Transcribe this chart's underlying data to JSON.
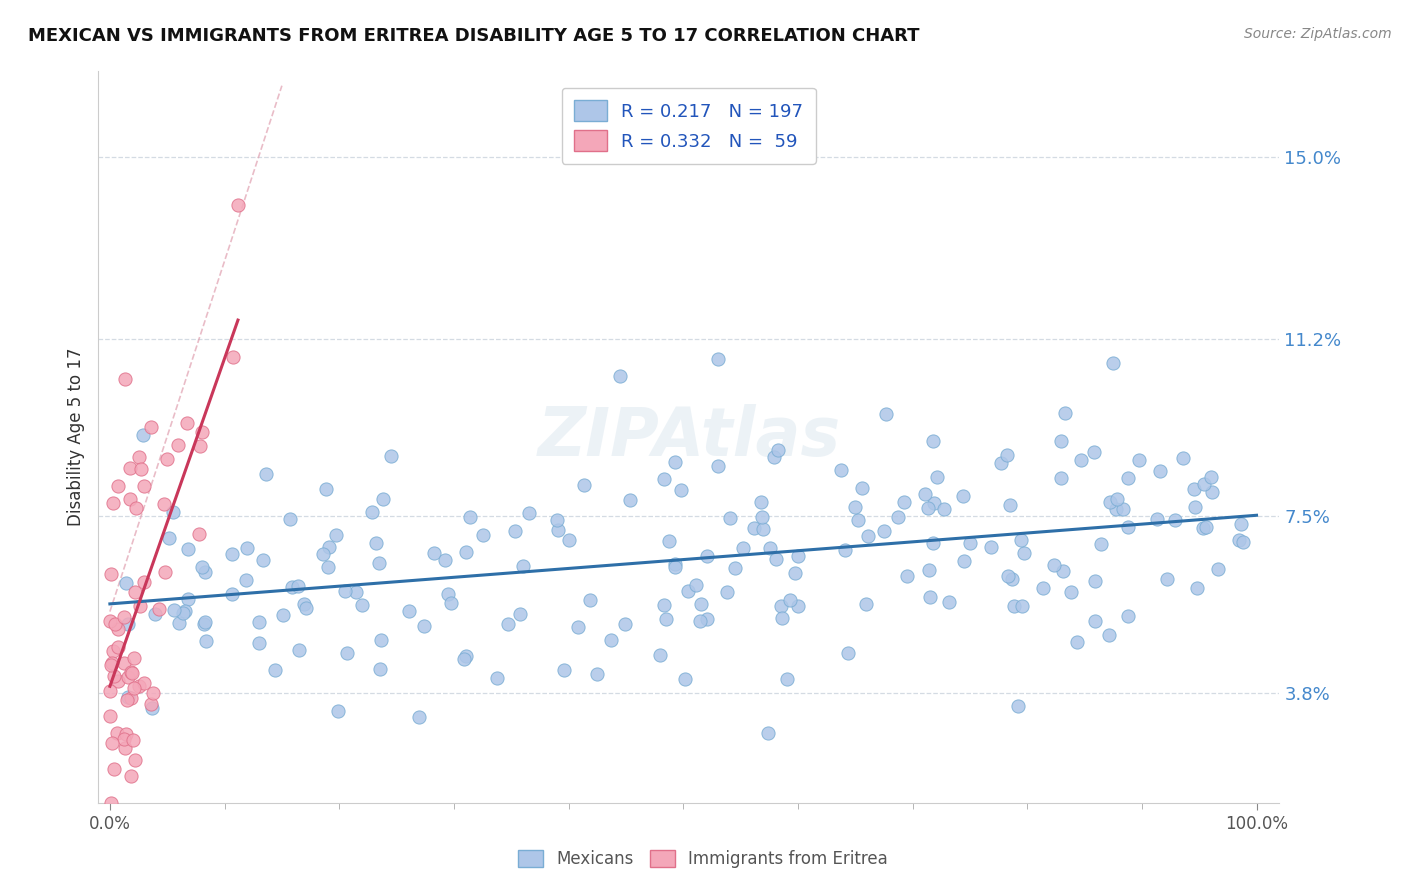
{
  "title": "MEXICAN VS IMMIGRANTS FROM ERITREA DISABILITY AGE 5 TO 17 CORRELATION CHART",
  "source": "Source: ZipAtlas.com",
  "ylabel": "Disability Age 5 to 17",
  "yticks": [
    3.8,
    7.5,
    11.2,
    15.0
  ],
  "ytick_labels": [
    "3.8%",
    "7.5%",
    "11.2%",
    "15.0%"
  ],
  "xtick_labels": [
    "0.0%",
    "100.0%"
  ],
  "mexican_color": "#aec6e8",
  "mexican_edge": "#7aadd4",
  "eritrea_color": "#f4a7b9",
  "eritrea_edge": "#e0708a",
  "trend_mex_color": "#2e6fa8",
  "trend_eri_color": "#c9375a",
  "ref_line_color": "#e0a0b0",
  "grid_color": "#d0d8e0",
  "ytick_color": "#4488cc",
  "xtick_color": "#555555",
  "title_color": "#111111",
  "source_color": "#888888",
  "watermark_color": "#dde8f0",
  "legend_text_color": "#2255bb",
  "bottom_label_mex": "Mexicans",
  "bottom_label_eri": "Immigrants from Eritrea",
  "seed": 17
}
